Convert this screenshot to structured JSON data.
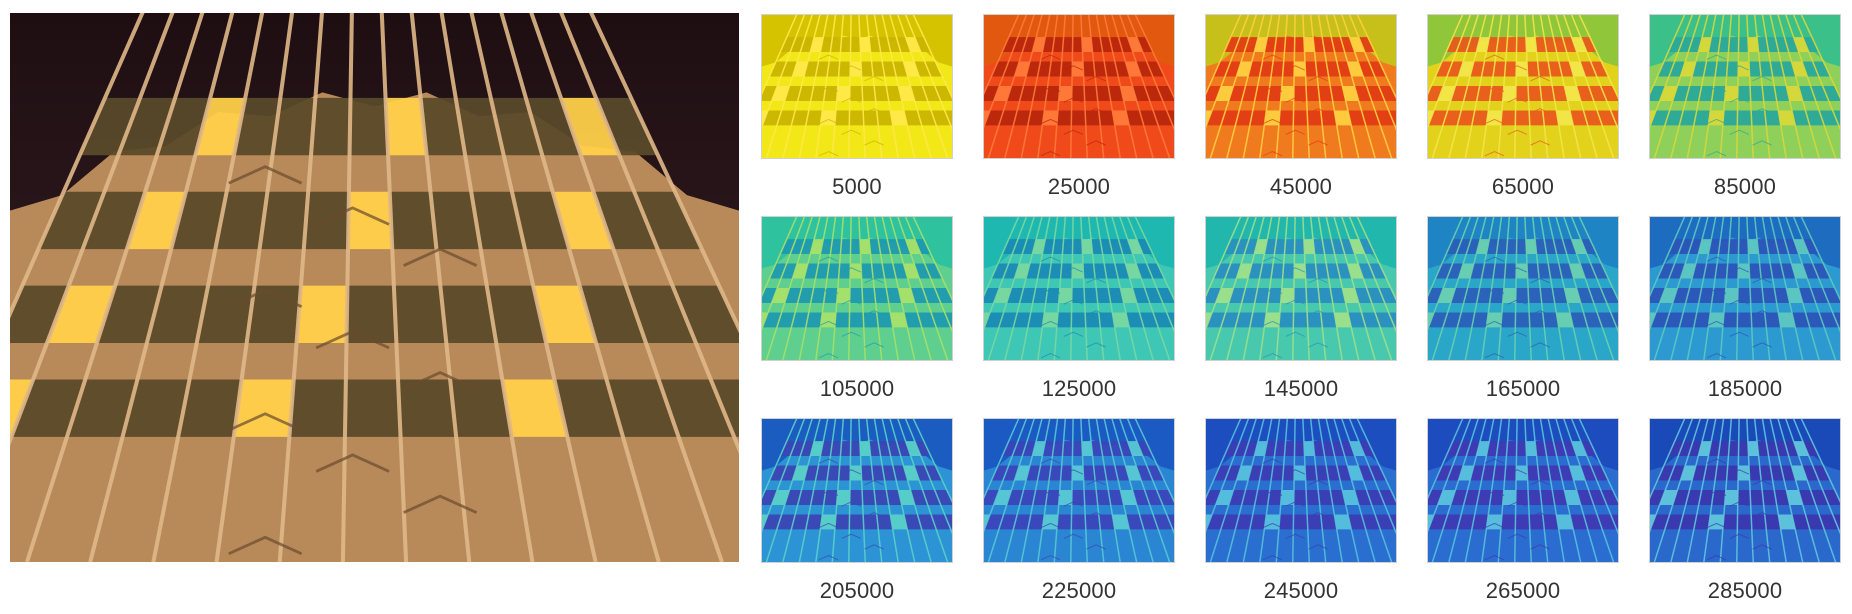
{
  "figure": {
    "main_image": {
      "icon": "building-facade-photo"
    },
    "panels": [
      {
        "label": "5000",
        "sky": "#d6c300",
        "pal": [
          "#f2e818",
          "#c9b400",
          "#ffe94a"
        ]
      },
      {
        "label": "25000",
        "sky": "#e2580f",
        "pal": [
          "#f04a1a",
          "#b8260c",
          "#ff7a3a"
        ]
      },
      {
        "label": "45000",
        "sky": "#c8c01a",
        "pal": [
          "#f07a1e",
          "#e23c14",
          "#ffd040"
        ]
      },
      {
        "label": "65000",
        "sky": "#8fc63a",
        "pal": [
          "#e3d21c",
          "#e85a1c",
          "#f2e64a"
        ]
      },
      {
        "label": "85000",
        "sky": "#3cc08a",
        "pal": [
          "#8fd05a",
          "#2aa89a",
          "#d8d83a"
        ]
      },
      {
        "label": "105000",
        "sky": "#2ec29e",
        "pal": [
          "#5ecf8e",
          "#1e9ab0",
          "#a8e06a"
        ]
      },
      {
        "label": "125000",
        "sky": "#1fb8b0",
        "pal": [
          "#3fc7b5",
          "#1a8ab4",
          "#7ad8a0"
        ]
      },
      {
        "label": "145000",
        "sky": "#22b7ad",
        "pal": [
          "#48c9ae",
          "#2a8fc0",
          "#9ee08a"
        ]
      },
      {
        "label": "165000",
        "sky": "#1f84c4",
        "pal": [
          "#2aa6c8",
          "#2a5fb8",
          "#6ad0b0"
        ]
      },
      {
        "label": "185000",
        "sky": "#1d6cc0",
        "pal": [
          "#2c9ad0",
          "#2c54b8",
          "#5ec8c0"
        ]
      },
      {
        "label": "205000",
        "sky": "#1a5cc0",
        "pal": [
          "#2c94d4",
          "#3a46b4",
          "#5ad0c8"
        ]
      },
      {
        "label": "225000",
        "sky": "#1a5ac2",
        "pal": [
          "#2a86d2",
          "#3a44b8",
          "#58c8d4"
        ]
      },
      {
        "label": "245000",
        "sky": "#1d4ec0",
        "pal": [
          "#2a6fd0",
          "#3c3cb4",
          "#56c0dc"
        ]
      },
      {
        "label": "265000",
        "sky": "#1d4cbe",
        "pal": [
          "#2a6ccf",
          "#3e3ab2",
          "#58c2dc"
        ]
      },
      {
        "label": "285000",
        "sky": "#1a4ab8",
        "pal": [
          "#2a68cc",
          "#3a38ae",
          "#60c6dc"
        ]
      }
    ]
  }
}
